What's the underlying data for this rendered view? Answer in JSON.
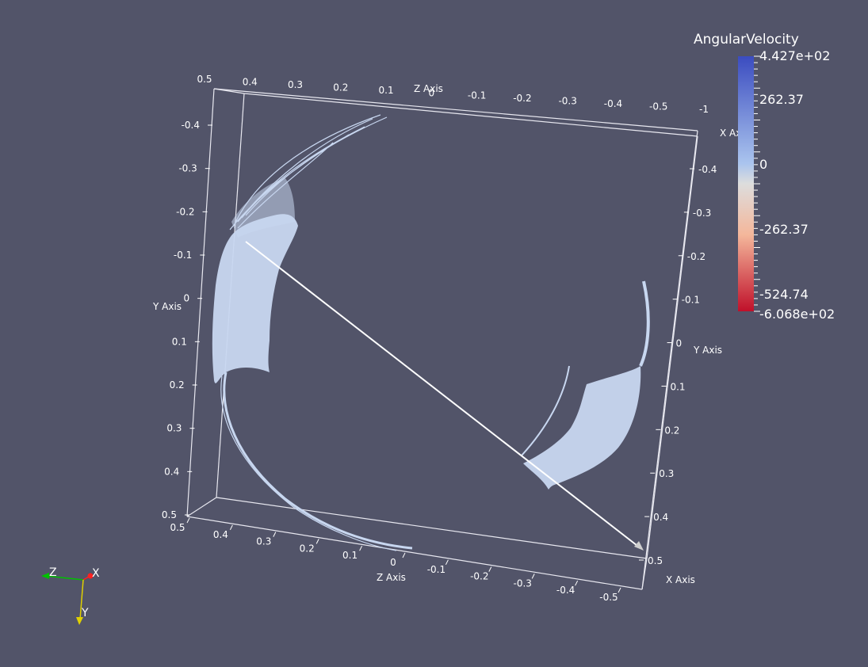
{
  "colorbar": {
    "title": "AngularVelocity",
    "labels": [
      "4.427e+02",
      "262.37",
      "0",
      "-262.37",
      "-524.74",
      "-6.068e+02"
    ],
    "colors": {
      "top": "#3b4cc0",
      "mid": "#dddddd",
      "bottom": "#c0102a"
    }
  },
  "axes": {
    "top_z_ticks": [
      "0.5",
      "0.4",
      "0.3",
      "0.2",
      "0.1",
      "0",
      "-0.1",
      "-0.2",
      "-0.3",
      "-0.4",
      "-0.5",
      "-1"
    ],
    "top_z_title": "Z Axis",
    "top_x_title": "X Ax",
    "left_y_ticks": [
      "-0.4",
      "-0.3",
      "-0.2",
      "-0.1",
      "0",
      "0.1",
      "0.2",
      "0.3",
      "0.4",
      "0.5"
    ],
    "left_y_title": "Y Axis",
    "right_y_ticks": [
      "-0.4",
      "-0.3",
      "-0.2",
      "-0.1",
      "0",
      "0.1",
      "0.2",
      "0.3",
      "0.4",
      "0.5"
    ],
    "right_y_title": "Y Axis",
    "bottom_z_ticks": [
      "0.5",
      "0.4",
      "0.3",
      "0.2",
      "0.1",
      "0",
      "-0.1",
      "-0.2",
      "-0.3",
      "-0.4",
      "-0.5"
    ],
    "bottom_z_title": "Z Axis",
    "bottom_x_title": "X Axis"
  },
  "orientation": {
    "z": "Z",
    "x": "X",
    "y": "Y"
  },
  "surface_color": "#c8d7f0",
  "line_color": "#ffffff"
}
